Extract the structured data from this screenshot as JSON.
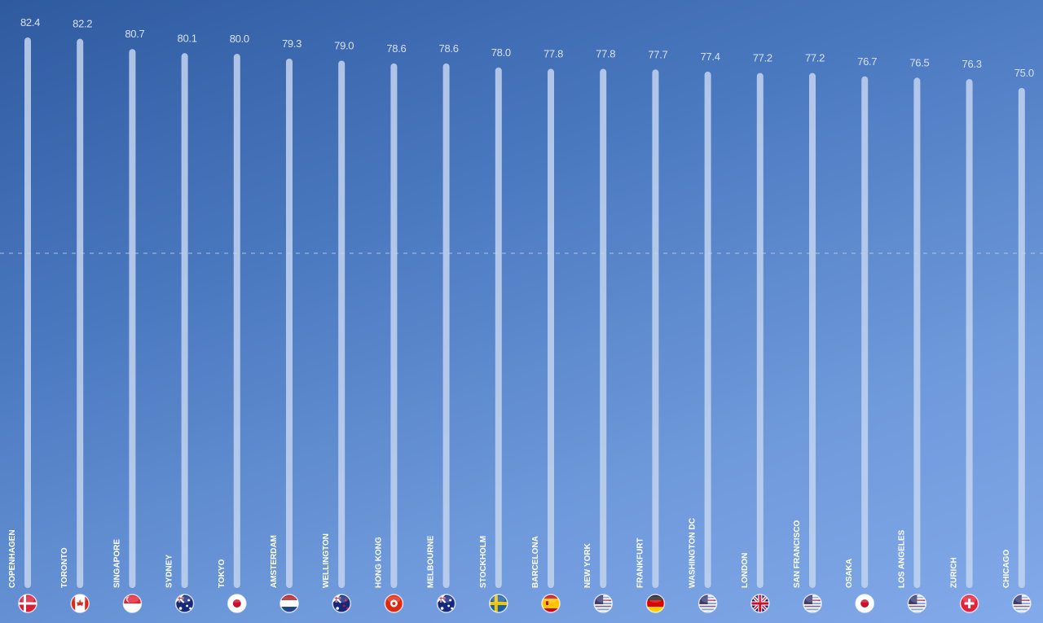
{
  "chart_data": {
    "type": "bar",
    "title": "",
    "xlabel": "",
    "ylabel": "",
    "categories": [
      "COPENHAGEN",
      "TORONTO",
      "SINGAPORE",
      "SYDNEY",
      "TOKYO",
      "AMSTERDAM",
      "WELLINGTON",
      "HONG KONG",
      "MELBOURNE",
      "STOCKHOLM",
      "BARCELONA",
      "NEW YORK",
      "FRANKFURT",
      "WASHINGTON DC",
      "LONDON",
      "SAN FRANCISCO",
      "OSAKA",
      "LOS ANGELES",
      "ZURICH",
      "CHICAGO"
    ],
    "values": [
      82.4,
      82.2,
      80.7,
      80.1,
      80.0,
      79.3,
      79.0,
      78.6,
      78.6,
      78.0,
      77.8,
      77.8,
      77.7,
      77.4,
      77.2,
      77.2,
      76.7,
      76.5,
      76.3,
      75.0
    ],
    "value_labels": [
      "82.4",
      "82.2",
      "80.7",
      "80.1",
      "80.0",
      "79.3",
      "79.0",
      "78.6",
      "78.6",
      "78.0",
      "77.8",
      "77.8",
      "77.7",
      "77.4",
      "77.2",
      "77.2",
      "76.7",
      "76.5",
      "76.3",
      "75.0"
    ],
    "flags": [
      "denmark",
      "canada",
      "singapore",
      "australia",
      "japan",
      "netherlands",
      "new-zealand",
      "hong-kong",
      "australia",
      "sweden",
      "spain",
      "usa",
      "germany",
      "usa",
      "uk",
      "usa",
      "japan",
      "usa",
      "switzerland",
      "usa"
    ],
    "ylim": [
      0,
      90
    ],
    "grid": false,
    "legend": "none",
    "colors": {
      "bar": "#c3d3ee",
      "value_text": "#d6e2f5",
      "label_text": "#ffffff"
    }
  }
}
